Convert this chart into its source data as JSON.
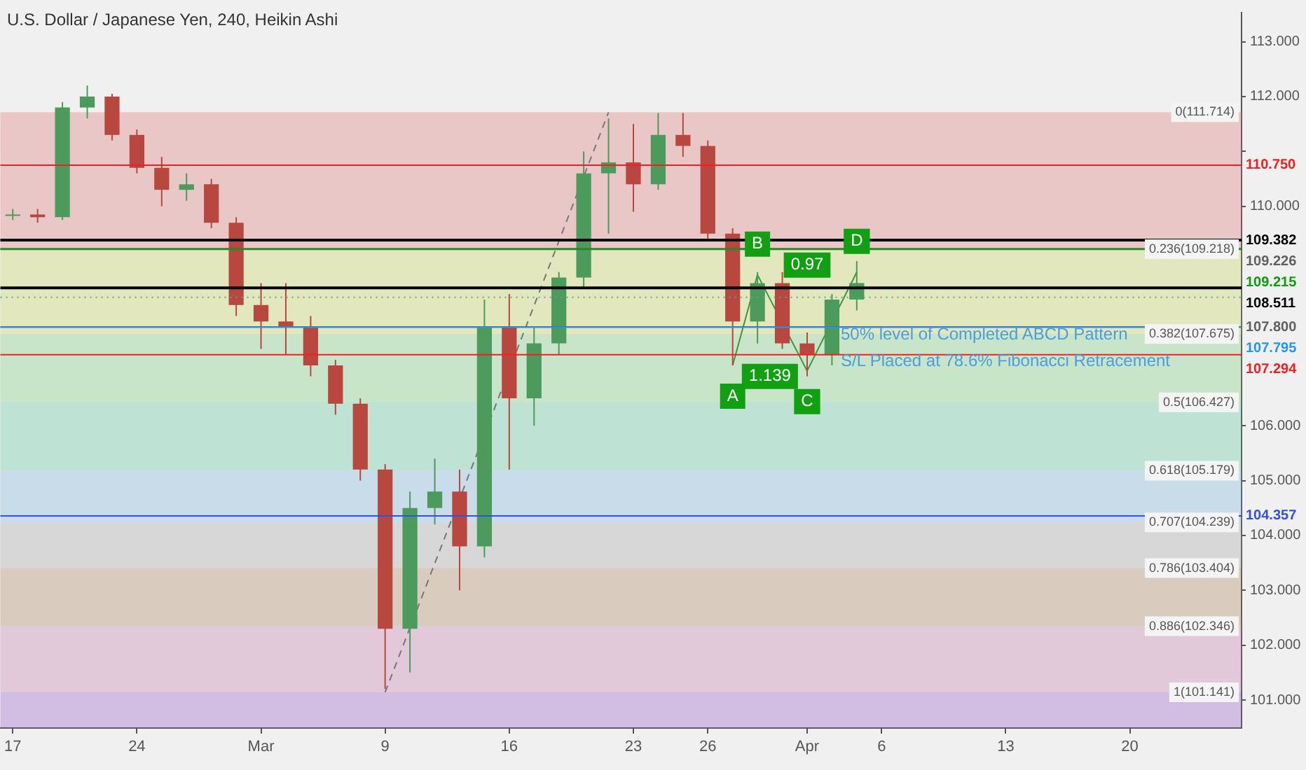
{
  "chart_data": {
    "type": "candlestick",
    "title": "U.S. Dollar / Japanese Yen, 240, Heikin Ashi",
    "categories": [
      "17",
      null,
      null,
      null,
      null,
      "24",
      null,
      null,
      null,
      null,
      "Mar",
      null,
      null,
      null,
      null,
      "9",
      null,
      null,
      null,
      null,
      "16",
      null,
      null,
      null,
      null,
      "23",
      null,
      null,
      "26",
      null,
      null,
      null,
      "Apr",
      null,
      null,
      "6",
      null,
      null,
      null,
      null,
      "13",
      null,
      null,
      null,
      null,
      "20",
      null,
      null,
      null,
      null
    ],
    "ohlc": [
      [
        109.85,
        109.95,
        109.75,
        109.85
      ],
      [
        109.85,
        109.95,
        109.7,
        109.8
      ],
      [
        109.8,
        111.9,
        109.75,
        111.8
      ],
      [
        111.8,
        112.2,
        111.6,
        112.0
      ],
      [
        112.0,
        112.05,
        111.2,
        111.3
      ],
      [
        111.3,
        111.4,
        110.6,
        110.7
      ],
      [
        110.7,
        110.9,
        110.0,
        110.3
      ],
      [
        110.3,
        110.6,
        110.1,
        110.4
      ],
      [
        110.4,
        110.5,
        109.6,
        109.7
      ],
      [
        109.7,
        109.8,
        108.0,
        108.2
      ],
      [
        108.2,
        108.6,
        107.4,
        107.9
      ],
      [
        107.9,
        108.6,
        107.3,
        107.8
      ],
      [
        107.8,
        108.0,
        106.9,
        107.1
      ],
      [
        107.1,
        107.2,
        106.2,
        106.4
      ],
      [
        106.4,
        106.5,
        105.0,
        105.2
      ],
      [
        105.2,
        105.3,
        101.2,
        102.3
      ],
      [
        102.3,
        104.8,
        101.5,
        104.5
      ],
      [
        104.5,
        105.4,
        104.2,
        104.8
      ],
      [
        104.8,
        105.2,
        103.0,
        103.8
      ],
      [
        103.8,
        108.3,
        103.6,
        107.8
      ],
      [
        107.8,
        108.4,
        105.2,
        106.5
      ],
      [
        106.5,
        107.8,
        106.0,
        107.5
      ],
      [
        107.5,
        108.8,
        107.3,
        108.7
      ],
      [
        108.7,
        111.0,
        108.5,
        110.6
      ],
      [
        110.6,
        111.6,
        109.5,
        110.8
      ],
      [
        110.8,
        111.5,
        109.9,
        110.4
      ],
      [
        110.4,
        111.7,
        110.3,
        111.3
      ],
      [
        111.3,
        111.7,
        110.9,
        111.1
      ],
      [
        111.1,
        111.2,
        109.4,
        109.5
      ],
      [
        109.5,
        109.6,
        107.1,
        107.9
      ],
      [
        107.9,
        108.8,
        107.5,
        108.6
      ],
      [
        108.6,
        108.8,
        107.4,
        107.5
      ],
      [
        107.5,
        107.7,
        106.9,
        107.3
      ],
      [
        107.3,
        108.4,
        107.1,
        108.3
      ],
      [
        108.3,
        109.0,
        108.1,
        108.6
      ],
      null,
      null,
      null,
      null,
      null,
      null,
      null,
      null,
      null,
      null,
      null,
      null,
      null,
      null,
      null
    ],
    "colors": [
      "#4c9a5c",
      "#b8473f",
      "#4c9a5c",
      "#4c9a5c",
      "#b8473f",
      "#b8473f",
      "#b8473f",
      "#4c9a5c",
      "#b8473f",
      "#b8473f",
      "#b8473f",
      "#b8473f",
      "#b8473f",
      "#b8473f",
      "#b8473f",
      "#b8473f",
      "#4c9a5c",
      "#4c9a5c",
      "#b8473f",
      "#4c9a5c",
      "#b8473f",
      "#4c9a5c",
      "#4c9a5c",
      "#4c9a5c",
      "#4c9a5c",
      "#b8473f",
      "#4c9a5c",
      "#b8473f",
      "#b8473f",
      "#b8473f",
      "#4c9a5c",
      "#b8473f",
      "#b8473f",
      "#4c9a5c",
      "#4c9a5c",
      null,
      null,
      null,
      null,
      null,
      null,
      null,
      null,
      null,
      null,
      null,
      null,
      null,
      null,
      null
    ],
    "series": [
      {
        "type": "line",
        "color": "#777777",
        "line_style": "dashed",
        "values": [
          null,
          null,
          null,
          null,
          null,
          null,
          null,
          null,
          null,
          null,
          null,
          null,
          null,
          null,
          null,
          101.141,
          null,
          null,
          null,
          null,
          null,
          null,
          null,
          null,
          111.714,
          null,
          null,
          null,
          null,
          null,
          null,
          null,
          null,
          null,
          null,
          null,
          null,
          null,
          null,
          null,
          null,
          null,
          null,
          null,
          null,
          null,
          null,
          null,
          null,
          null
        ]
      },
      {
        "type": "line",
        "color": "#3a9a3a",
        "line_style": "solid",
        "values": [
          null,
          null,
          null,
          null,
          null,
          null,
          null,
          null,
          null,
          null,
          null,
          null,
          null,
          null,
          null,
          null,
          null,
          null,
          null,
          null,
          null,
          null,
          null,
          null,
          null,
          null,
          null,
          null,
          null,
          107.1,
          108.75,
          null,
          107.0,
          null,
          108.8,
          null,
          null,
          null,
          null,
          null,
          null,
          null,
          null,
          null,
          null,
          null,
          null,
          null,
          null,
          null
        ]
      }
    ],
    "marker": "none",
    "ylim": [
      100.49,
      113.53
    ],
    "yticks": [
      {
        "value": 101,
        "label": "101.000"
      },
      {
        "value": 102,
        "label": "102.000"
      },
      {
        "value": 103,
        "label": "103.000"
      },
      {
        "value": 104,
        "label": "104.000"
      },
      {
        "value": 105,
        "label": "105.000"
      },
      {
        "value": 106,
        "label": "106.000"
      },
      {
        "value": 110,
        "label": "110.000"
      },
      {
        "value": 111,
        "label": null
      },
      {
        "value": 112,
        "label": "112.000"
      },
      {
        "value": 113,
        "label": "113.000"
      }
    ],
    "grid": false,
    "bands": [
      {
        "axis": "y",
        "from": 109.218,
        "to": 111.714,
        "label": "0(111.714)",
        "color": "#e07a7a"
      },
      {
        "axis": "y",
        "from": 107.675,
        "to": 109.218,
        "label": "0.236(109.218)",
        "color": "#c8d860"
      },
      {
        "axis": "y",
        "from": 106.427,
        "to": 107.675,
        "label": "0.382(107.675)",
        "color": "#80d080"
      },
      {
        "axis": "y",
        "from": 105.179,
        "to": 106.427,
        "label": "0.5(106.427)",
        "color": "#60c8a0"
      },
      {
        "axis": "y",
        "from": 104.239,
        "to": 105.179,
        "label": "0.618(105.179)",
        "color": "#80b8e0"
      },
      {
        "axis": "y",
        "from": 103.404,
        "to": 104.239,
        "label": "0.707(104.239)",
        "color": "#a8a8a8"
      },
      {
        "axis": "y",
        "from": 102.346,
        "to": 103.404,
        "label": "0.786(103.404)",
        "color": "#b08860"
      },
      {
        "axis": "y",
        "from": 101.141,
        "to": 102.346,
        "label": "0.886(102.346)",
        "color": "#c880b0"
      },
      {
        "axis": "y",
        "from": 100.49,
        "to": 101.141,
        "label": "1(101.141)",
        "color": "#9a60c8"
      }
    ],
    "ref_lines": [
      {
        "axis": "y",
        "value": 110.75,
        "label": "110.750",
        "color": "#f02020"
      },
      {
        "axis": "y",
        "value": 109.382,
        "label": "109.382",
        "color": "#000000"
      },
      {
        "axis": "y",
        "value": 109.226,
        "label": "109.226",
        "color": "#606060"
      },
      {
        "axis": "y",
        "value": 109.215,
        "label": "109.215",
        "color": "#109a10"
      },
      {
        "axis": "y",
        "value": 108.511,
        "label": "108.511",
        "color": "#000000"
      },
      {
        "axis": "y",
        "value": 108.34,
        "color": "#50a8a8",
        "line_style": "dotted"
      },
      {
        "axis": "y",
        "value": 107.8,
        "label": "107.800",
        "color": "#606060"
      },
      {
        "axis": "y",
        "value": 107.795,
        "label": "107.795",
        "color": "#2196f3"
      },
      {
        "axis": "y",
        "value": 107.294,
        "label": "107.294",
        "color": "#f02020"
      },
      {
        "axis": "y",
        "value": 104.357,
        "label": "104.357",
        "color": "#3050e0"
      }
    ],
    "annotations": [
      "A",
      "B",
      "C",
      "D",
      "0.97",
      "1.139",
      "50% level of Completed ABCD Pattern",
      "S/L Placed at 78.6% Fibonacci Retracement"
    ]
  }
}
